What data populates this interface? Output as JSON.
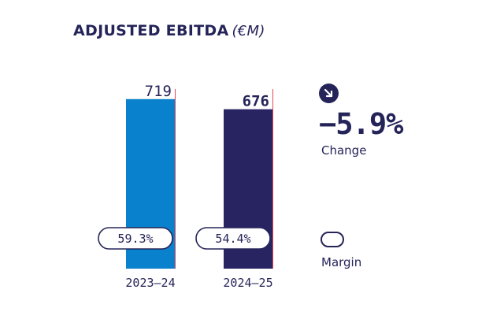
{
  "title": "ADJUSTED EBITDA",
  "title_unit": "(€M)",
  "side_panel": {
    "change_value": "−5.9%",
    "change_label": "Change",
    "change_icon": "arrow-down-right-icon",
    "margin_legend_label": "Margin",
    "margin_legend_icon": "pill-outline-icon"
  },
  "colors": {
    "accent_light": "#0a81cc",
    "accent_dark": "#272461",
    "text": "#252459",
    "marker_line": "#e8475a"
  },
  "chart_data": {
    "type": "bar",
    "title": "ADJUSTED EBITDA (€M)",
    "categories": [
      "2023–24",
      "2024–25"
    ],
    "values": [
      719,
      676
    ],
    "value_labels": [
      "719",
      "676"
    ],
    "margins": [
      59.3,
      54.4
    ],
    "margin_labels": [
      "59.3%",
      "54.4%"
    ],
    "bar_colors": [
      "#0a81cc",
      "#272461"
    ],
    "value_label_bold": [
      false,
      true
    ],
    "ylim": [
      0,
      735
    ],
    "grid": false,
    "legend": "none"
  }
}
